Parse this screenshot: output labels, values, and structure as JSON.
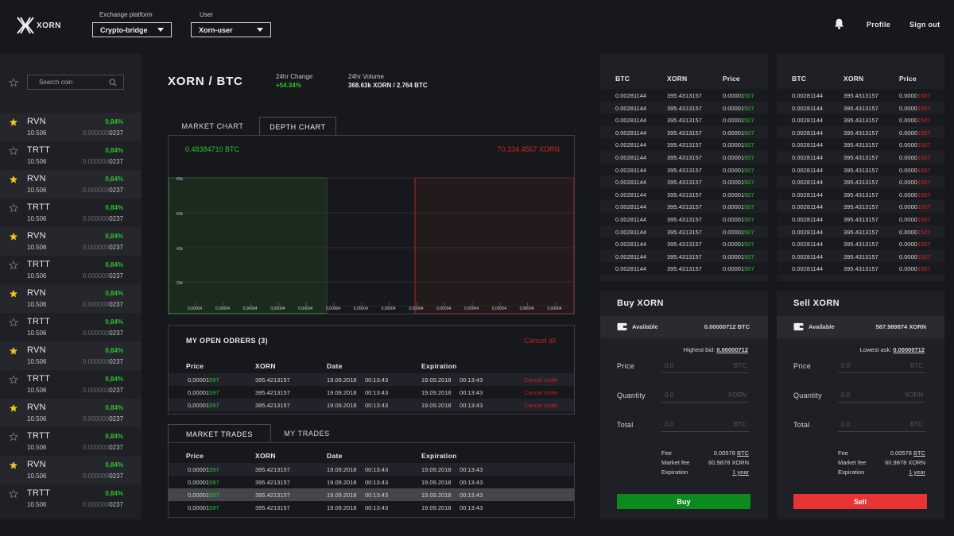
{
  "header": {
    "brand": "XORN",
    "exchange_label": "Exchange platform",
    "exchange_value": "Crypto-bridge",
    "user_label": "User",
    "user_value": "Xorn-user",
    "profile": "Profile",
    "signout": "Sign out"
  },
  "sidebar": {
    "search_placeholder": "Search coin",
    "coins": [
      {
        "name": "RVN",
        "fav": true,
        "pct": "0,84%",
        "vol": "10.506",
        "price_zero": "0.000000",
        "price_digits": "0237"
      },
      {
        "name": "TRTT",
        "fav": false,
        "pct": "0,84%",
        "vol": "10.506",
        "price_zero": "0.000000",
        "price_digits": "0237"
      },
      {
        "name": "RVN",
        "fav": true,
        "pct": "0,84%",
        "vol": "10.506",
        "price_zero": "0.000000",
        "price_digits": "0237"
      },
      {
        "name": "TRTT",
        "fav": false,
        "pct": "0,84%",
        "vol": "10.506",
        "price_zero": "0.000000",
        "price_digits": "0237"
      },
      {
        "name": "RVN",
        "fav": true,
        "pct": "0,84%",
        "vol": "10.506",
        "price_zero": "0.000000",
        "price_digits": "0237"
      },
      {
        "name": "TRTT",
        "fav": false,
        "pct": "0,84%",
        "vol": "10.506",
        "price_zero": "0.000000",
        "price_digits": "0237"
      },
      {
        "name": "RVN",
        "fav": true,
        "pct": "0,84%",
        "vol": "10.506",
        "price_zero": "0.000000",
        "price_digits": "0237"
      },
      {
        "name": "TRTT",
        "fav": false,
        "pct": "0,84%",
        "vol": "10.506",
        "price_zero": "0.000000",
        "price_digits": "0237"
      },
      {
        "name": "RVN",
        "fav": true,
        "pct": "0,84%",
        "vol": "10.506",
        "price_zero": "0.000000",
        "price_digits": "0237"
      },
      {
        "name": "TRTT",
        "fav": false,
        "pct": "0,84%",
        "vol": "10.506",
        "price_zero": "0.000000",
        "price_digits": "0237"
      },
      {
        "name": "RVN",
        "fav": true,
        "pct": "0,84%",
        "vol": "10.506",
        "price_zero": "0.000000",
        "price_digits": "0237"
      },
      {
        "name": "TRTT",
        "fav": false,
        "pct": "0,84%",
        "vol": "10.506",
        "price_zero": "0.000000",
        "price_digits": "0237"
      },
      {
        "name": "RVN",
        "fav": true,
        "pct": "0,84%",
        "vol": "10.506",
        "price_zero": "0.000000",
        "price_digits": "0237"
      },
      {
        "name": "TRTT",
        "fav": false,
        "pct": "0,84%",
        "vol": "10.506",
        "price_zero": "0.000000",
        "price_digits": "0237"
      }
    ]
  },
  "market": {
    "pair": "XORN / BTC",
    "change_label": "24hr Change",
    "change_value": "+54.34%",
    "volume_label": "24hr Volume",
    "volume_value": "368.63k XORN / 2.764 BTC",
    "tabs": [
      "MARKET CHART",
      "DEPTH CHART"
    ],
    "active_tab": 1
  },
  "depth_chart": {
    "bid_total": "0.48384710 BTC",
    "ask_total": "70,334.4567 XORN",
    "y_ticks": [
      "80k",
      "60k",
      "40k",
      "20k"
    ],
    "x_ticks": [
      "0,00004",
      "0,00004",
      "0,00004",
      "0,00004",
      "0,00004",
      "0,00004",
      "0,00004",
      "0,00004",
      "0,00004",
      "0,00004",
      "0,00004",
      "0,00004",
      "0,00004",
      "0,00004"
    ],
    "bid_color": "#2bb32e",
    "ask_color": "#c21f1f"
  },
  "open_orders": {
    "title": "MY OPEN ODRERS (3)",
    "cancel_all": "Cancel all",
    "columns": [
      "Price",
      "XORN",
      "Date",
      "Expiration"
    ],
    "rows": [
      {
        "price_a": "0,00001",
        "price_b": "597",
        "xorn": "395.4213157",
        "date": "19.09.2018     00:13:43",
        "exp": "19.09.2018     00:13:43",
        "action": "Cancel order"
      },
      {
        "price_a": "0,00001",
        "price_b": "597",
        "xorn": "395.4213157",
        "date": "19.09.2018     00:13:43",
        "exp": "19.09.2018     00:13:43",
        "action": "Cancel order"
      },
      {
        "price_a": "0,00001",
        "price_b": "597",
        "xorn": "395.4213157",
        "date": "19.09.2018     00:13:43",
        "exp": "19.09.2018     00:13:43",
        "action": "Cancel order"
      }
    ]
  },
  "trades": {
    "tabs": [
      "MARKET TRADES",
      "MY TRADES"
    ],
    "columns": [
      "Price",
      "XORN",
      "Date",
      "Expiration"
    ],
    "rows": [
      {
        "price_a": "0,00001",
        "price_b": "597",
        "xorn": "395.4213157",
        "date": "19.09.2018     00:13:43",
        "exp": "19.09.2018     00:13:43"
      },
      {
        "price_a": "0,00001",
        "price_b": "597",
        "xorn": "395.4213157",
        "date": "19.09.2018     00:13:43",
        "exp": "19.09.2018     00:13:43"
      },
      {
        "price_a": "0,00001",
        "price_b": "597",
        "xorn": "395.4213157",
        "date": "19.09.2018     00:13:43",
        "exp": "19.09.2018     00:13:43"
      },
      {
        "price_a": "0,00001",
        "price_b": "597",
        "xorn": "395.4213157",
        "date": "19.09.2018     00:13:43",
        "exp": "19.09.2018     00:13:43"
      }
    ]
  },
  "buy_book": {
    "columns": [
      "BTC",
      "XORN",
      "Price"
    ],
    "btc": "0.00281144",
    "xorn": "395.4313157",
    "price_a": "0.00001",
    "price_b": "507",
    "row_count": 15
  },
  "sell_book": {
    "columns": [
      "BTC",
      "XORN",
      "Price"
    ],
    "btc": "0.00281144",
    "xorn": "395.4313157",
    "price_a": "0.0000",
    "price_b": "1507",
    "row_count": 15
  },
  "buy_panel": {
    "title": "Buy XORN",
    "available_label": "Available",
    "available_value": "0.00000712 BTC",
    "ref_label": "Highest bid:",
    "ref_value": "0.00000712",
    "fields": [
      {
        "label": "Price",
        "placeholder": "0.0",
        "unit": "BTC"
      },
      {
        "label": "Quantity",
        "placeholder": "0.0",
        "unit": "XORN"
      },
      {
        "label": "Total",
        "placeholder": "0.0",
        "unit": "BTC"
      }
    ],
    "fee_label": "Fee",
    "fee_value": "0.00578",
    "fee_unit": "BTC",
    "mfee_label": "Market fee",
    "mfee_value": "60.9878 XORN",
    "exp_label": "Expiration",
    "exp_value": "1 year",
    "button": "Buy",
    "button_color": "#0d8a1d"
  },
  "sell_panel": {
    "title": "Sell XORN",
    "available_label": "Available",
    "available_value": "587.989874 XORN",
    "ref_label": "Lowest ask:",
    "ref_value": "0.00000712",
    "fields": [
      {
        "label": "Price",
        "placeholder": "0.0",
        "unit": "BTC"
      },
      {
        "label": "Quantity",
        "placeholder": "0.0",
        "unit": "XORN"
      },
      {
        "label": "Total",
        "placeholder": "0.0",
        "unit": "BTC"
      }
    ],
    "fee_label": "Fee",
    "fee_value": "0.00578",
    "fee_unit": "BTC",
    "mfee_label": "Market fee",
    "mfee_value": "60.9878 XORN",
    "exp_label": "Expiration",
    "exp_value": "1 year",
    "button": "Sell",
    "button_color": "#e83434"
  }
}
